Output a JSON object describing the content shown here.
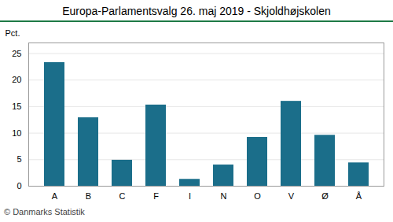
{
  "chart_data": {
    "type": "bar",
    "title": "Europa-Parlamentsvalg 26. maj 2019 - Skjoldhøjskolen",
    "categories": [
      "A",
      "B",
      "C",
      "F",
      "I",
      "N",
      "O",
      "V",
      "Ø",
      "Å"
    ],
    "values": [
      23.3,
      12.9,
      4.9,
      15.3,
      1.3,
      4.0,
      9.2,
      16.0,
      9.6,
      4.4
    ],
    "color": "#1b6e8a",
    "ylim": [
      0,
      27
    ],
    "yticks": [
      0,
      5,
      10,
      15,
      20,
      25
    ],
    "grid": true,
    "ylabel": "Pct.",
    "footer": "© Danmarks Statistik"
  }
}
